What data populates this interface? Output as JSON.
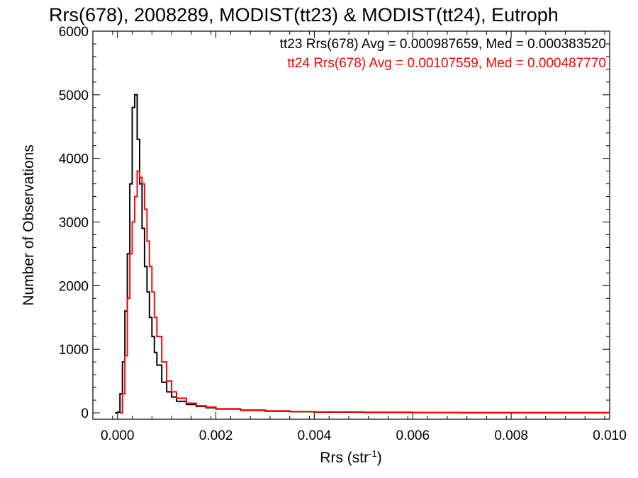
{
  "chart_data": {
    "type": "line",
    "style": "histogram-step",
    "title": "Rrs(678), 2008289, MODIST(tt23) & MODIST(tt24), Eutroph",
    "xlabel": "Rrs (str",
    "xlabel_superscript": "-1",
    "xlabel_suffix": ")",
    "ylabel": "Number of Observations",
    "xlim": [
      -0.0005,
      0.01
    ],
    "ylim": [
      -100,
      6000
    ],
    "xticks": [
      0.0,
      0.002,
      0.004,
      0.006,
      0.008,
      0.01
    ],
    "xtick_labels": [
      "0.000",
      "0.002",
      "0.004",
      "0.006",
      "0.008",
      "0.010"
    ],
    "yticks": [
      0,
      1000,
      2000,
      3000,
      4000,
      5000,
      6000
    ],
    "ytick_labels": [
      "0",
      "1000",
      "2000",
      "3000",
      "4000",
      "5000",
      "6000"
    ],
    "legend_position": "top-right",
    "grid": false,
    "series": [
      {
        "name": "tt23",
        "color": "#000000",
        "legend_text": "tt23 Rrs(678) Avg = 0.000987659, Med = 0.000383520",
        "points": [
          [
            -5e-05,
            0
          ],
          [
            0.0,
            10
          ],
          [
            5e-05,
            300
          ],
          [
            0.0001,
            800
          ],
          [
            0.00015,
            1600
          ],
          [
            0.0002,
            2500
          ],
          [
            0.00025,
            3600
          ],
          [
            0.0003,
            4800
          ],
          [
            0.00035,
            5000
          ],
          [
            0.0004,
            4300
          ],
          [
            0.00045,
            3600
          ],
          [
            0.0005,
            2900
          ],
          [
            0.00055,
            2300
          ],
          [
            0.0006,
            1900
          ],
          [
            0.00065,
            1500
          ],
          [
            0.0007,
            1200
          ],
          [
            0.00075,
            950
          ],
          [
            0.0008,
            750
          ],
          [
            0.0009,
            480
          ],
          [
            0.001,
            330
          ],
          [
            0.0011,
            250
          ],
          [
            0.0012,
            180
          ],
          [
            0.0014,
            130
          ],
          [
            0.0016,
            100
          ],
          [
            0.0018,
            80
          ],
          [
            0.002,
            60
          ],
          [
            0.0025,
            40
          ],
          [
            0.003,
            25
          ],
          [
            0.0035,
            18
          ],
          [
            0.004,
            12
          ],
          [
            0.005,
            8
          ],
          [
            0.006,
            5
          ],
          [
            0.007,
            4
          ],
          [
            0.008,
            3
          ],
          [
            0.009,
            2
          ],
          [
            0.01,
            2
          ]
        ]
      },
      {
        "name": "tt24",
        "color": "#ff0000",
        "legend_text": "tt24 Rrs(678) Avg = 0.00107559, Med = 0.000487770",
        "points": [
          [
            5e-05,
            0
          ],
          [
            0.0001,
            300
          ],
          [
            0.00015,
            900
          ],
          [
            0.0002,
            1800
          ],
          [
            0.00025,
            2500
          ],
          [
            0.0003,
            3000
          ],
          [
            0.00035,
            3400
          ],
          [
            0.0004,
            3800
          ],
          [
            0.00045,
            3700
          ],
          [
            0.0005,
            3600
          ],
          [
            0.00055,
            3200
          ],
          [
            0.0006,
            2700
          ],
          [
            0.00065,
            2300
          ],
          [
            0.0007,
            1900
          ],
          [
            0.00075,
            1500
          ],
          [
            0.0008,
            1200
          ],
          [
            0.0009,
            800
          ],
          [
            0.001,
            500
          ],
          [
            0.0011,
            330
          ],
          [
            0.0012,
            230
          ],
          [
            0.0014,
            150
          ],
          [
            0.0016,
            110
          ],
          [
            0.0018,
            90
          ],
          [
            0.002,
            65
          ],
          [
            0.0025,
            45
          ],
          [
            0.003,
            30
          ],
          [
            0.0035,
            20
          ],
          [
            0.004,
            14
          ],
          [
            0.005,
            9
          ],
          [
            0.006,
            6
          ],
          [
            0.007,
            4
          ],
          [
            0.008,
            3
          ],
          [
            0.009,
            2
          ],
          [
            0.01,
            2
          ]
        ]
      }
    ]
  }
}
